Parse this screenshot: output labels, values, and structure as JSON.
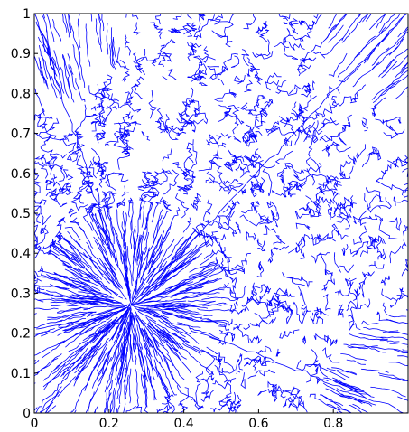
{
  "chart_data": {
    "type": "line",
    "title": "",
    "xlabel": "",
    "ylabel": "",
    "xlim": [
      0,
      1
    ],
    "ylim": [
      0,
      1
    ],
    "x_ticks": [
      "0",
      "0.2",
      "0.4",
      "0.6",
      "0.8"
    ],
    "y_ticks": [
      "0",
      "0.1",
      "0.2",
      "0.3",
      "0.4",
      "0.5",
      "0.6",
      "0.7",
      "0.8",
      "0.9",
      "1"
    ],
    "grid": false,
    "legend": "none",
    "series": [
      {
        "description_color": "#0000ff",
        "structure": {
          "domain": "unit square",
          "edge_spokes": [
            [
              0,
              0
            ],
            [
              1,
              0
            ],
            [
              1,
              1
            ],
            [
              0,
              1
            ]
          ],
          "focus_point": [
            0.26,
            0.27
          ]
        }
      }
    ],
    "colors": {
      "curve": "#0000ff",
      "axes": "#000000",
      "background": "#ffffff"
    }
  }
}
